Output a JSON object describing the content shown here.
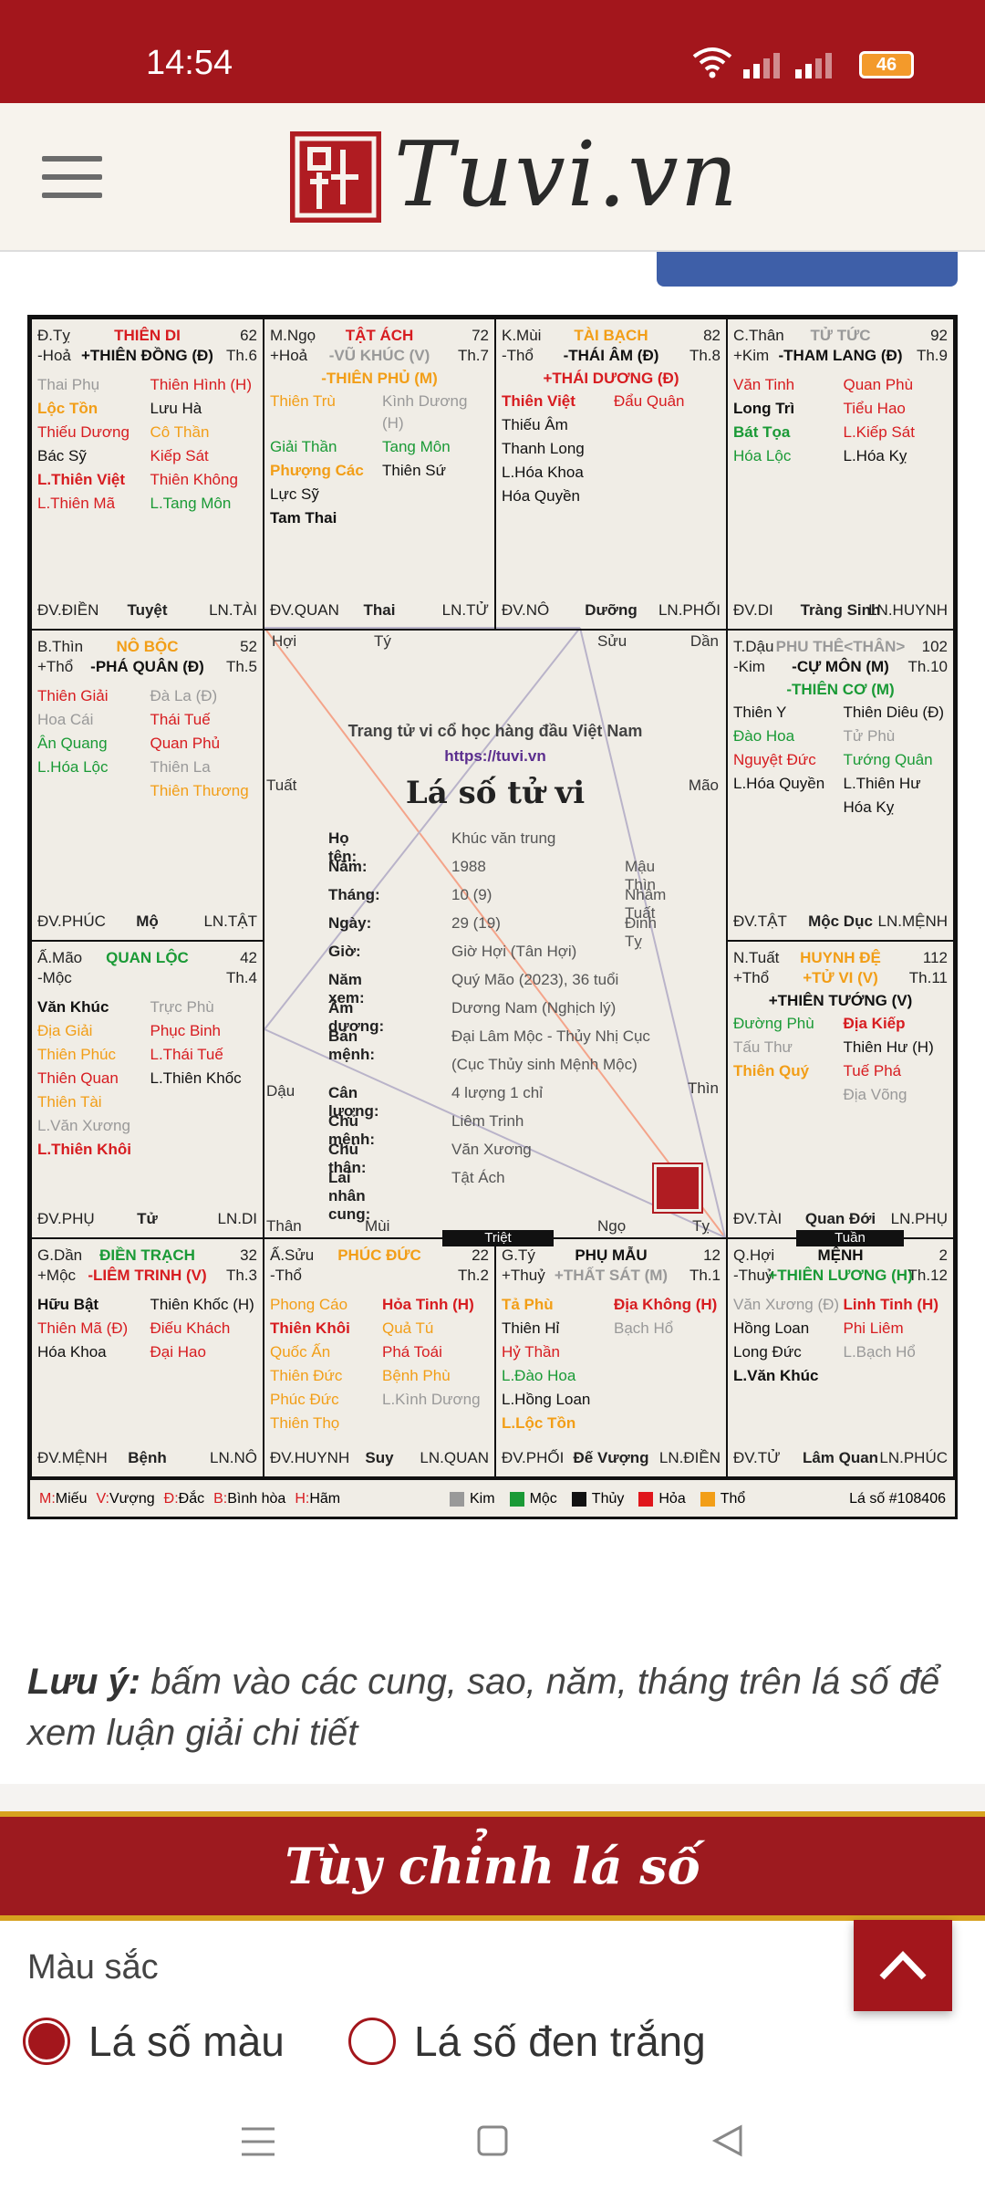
{
  "status": {
    "time": "14:54",
    "battery": "46"
  },
  "header": {
    "logo_text": "Tuvi.vn"
  },
  "center": {
    "t1": "Trang tử vi cổ học hàng đầu Việt Nam",
    "t2": "https://tuvi.vn",
    "t3": "Lá số tử vi",
    "rows": [
      [
        "Họ tên:",
        "Khúc văn trung",
        ""
      ],
      [
        "Năm:",
        "1988",
        "Mậu Thìn"
      ],
      [
        "Tháng:",
        "10 (9)",
        "Nhâm Tuất"
      ],
      [
        "Ngày:",
        "29 (19)",
        "Đinh Tỵ"
      ],
      [
        "Giờ:",
        "Giờ Hợi (Tân Hợi)",
        ""
      ],
      [
        "Năm xem:",
        "Quý Mão (2023), 36 tuổi",
        ""
      ],
      [
        "Âm dương:",
        "Dương Nam (Nghịch lý)",
        ""
      ],
      [
        "Bản mệnh:",
        "Đại Lâm Mộc - Thủy Nhị Cục",
        ""
      ],
      [
        "",
        "(Cục Thủy sinh Mệnh Mộc)",
        ""
      ],
      [
        "Cân lượng:",
        "4 lượng 1 chỉ",
        ""
      ],
      [
        "Chủ mệnh:",
        "Liêm Trinh",
        ""
      ],
      [
        "Chủ thân:",
        "Văn Xương",
        ""
      ],
      [
        "Lai nhân cung:",
        "Tật Ách",
        ""
      ]
    ],
    "corners": {
      "hoi": "Hợi",
      "ty": "Tý",
      "suu": "Sửu",
      "dan": "Dần",
      "tuat": "Tuất",
      "mao": "Mão",
      "dau": "Dậu",
      "thin": "Thìn",
      "than": "Thân",
      "mui": "Mùi",
      "ngo": "Ngọ",
      "ty2": "Tỵ"
    },
    "triet": "Triệt",
    "tuan": "Tuần"
  },
  "cells": [
    {
      "pos": "Đ.Tỵ",
      "name": "THIÊN DI",
      "nameColor": "#d71c20",
      "num": "62",
      "pos2": "-Hoả",
      "main": "+THIÊN ĐỒNG (Đ)",
      "mainColor": "#111",
      "main2": "",
      "main2Color": "",
      "th": "Th.6",
      "stars": [
        [
          "Thai Phụ",
          "c-gry"
        ],
        [
          "Thiên Hình (H)",
          "c-red"
        ],
        [
          "Lộc Tồn",
          "c-org b"
        ],
        [
          "Lưu Hà",
          "c-blk"
        ],
        [
          "Thiếu Dương",
          "c-red"
        ],
        [
          "Cô Thần",
          "c-org"
        ],
        [
          "Bác Sỹ",
          "c-blk"
        ],
        [
          "Kiếp Sát",
          "c-red"
        ],
        [
          "L.Thiên Việt",
          "c-red b"
        ],
        [
          "Thiên Không",
          "c-red"
        ],
        [
          "L.Thiên Mã",
          "c-red"
        ],
        [
          "L.Tang Môn",
          "c-grn"
        ]
      ],
      "foot": [
        "ĐV.ĐIỀN",
        "Tuyệt",
        "LN.TÀI"
      ]
    },
    {
      "pos": "M.Ngọ",
      "name": "TẬT ÁCH",
      "nameColor": "#d71c20",
      "num": "72",
      "pos2": "+Hoả",
      "main": "-VŨ KHÚC (V)",
      "mainColor": "#999",
      "main2": "-THIÊN PHỦ (M)",
      "main2Color": "#f29e17",
      "th": "Th.7",
      "stars": [
        [
          "Thiên Trù",
          "c-org"
        ],
        [
          "Kình Dương (H)",
          "c-gry"
        ],
        [
          "Giải Thần",
          "c-grn"
        ],
        [
          "Tang Môn",
          "c-grn"
        ],
        [
          "Phượng Các",
          "c-org b"
        ],
        [
          "Thiên Sứ",
          "c-blk"
        ],
        [
          "Lực Sỹ",
          "c-blk"
        ],
        [
          "",
          ""
        ],
        [
          "Tam Thai",
          "c-blk b"
        ],
        [
          "",
          ""
        ]
      ],
      "foot": [
        "ĐV.QUAN",
        "Thai",
        "LN.TỬ"
      ]
    },
    {
      "pos": "K.Mùi",
      "name": "TÀI BẠCH",
      "nameColor": "#f29e17",
      "num": "82",
      "pos2": "-Thổ",
      "main": "-THÁI ÂM (Đ)",
      "mainColor": "#111",
      "main2": "+THÁI DƯƠNG (Đ)",
      "main2Color": "#d71c20",
      "th": "Th.8",
      "stars": [
        [
          "Thiên Việt",
          "c-red b"
        ],
        [
          "Đẩu Quân",
          "c-red"
        ],
        [
          "Thiếu Âm",
          "c-blk"
        ],
        [
          "",
          ""
        ],
        [
          "Thanh Long",
          "c-blk"
        ],
        [
          "",
          ""
        ],
        [
          "L.Hóa Khoa",
          "c-blk"
        ],
        [
          "",
          ""
        ],
        [
          "Hóa Quyền",
          "c-blk"
        ],
        [
          "",
          ""
        ]
      ],
      "foot": [
        "ĐV.NÔ",
        "Dưỡng",
        "LN.PHỐI"
      ]
    },
    {
      "pos": "C.Thân",
      "name": "TỬ TỨC",
      "nameColor": "#999",
      "num": "92",
      "pos2": "+Kim",
      "main": "-THAM LANG (Đ)",
      "mainColor": "#111",
      "main2": "",
      "main2Color": "",
      "th": "Th.9",
      "stars": [
        [
          "Văn Tinh",
          "c-red"
        ],
        [
          "Quan Phù",
          "c-red"
        ],
        [
          "Long Trì",
          "c-blk b"
        ],
        [
          "Tiểu Hao",
          "c-red"
        ],
        [
          "Bát Tọa",
          "c-grn b"
        ],
        [
          "L.Kiếp Sát",
          "c-red"
        ],
        [
          "Hóa Lộc",
          "c-grn"
        ],
        [
          "L.Hóa Kỵ",
          "c-blk"
        ]
      ],
      "foot": [
        "ĐV.DI",
        "Tràng Sinh",
        "LN.HUYNH"
      ]
    },
    {
      "pos": "B.Thìn",
      "name": "NÔ BỘC",
      "nameColor": "#f29e17",
      "num": "52",
      "pos2": "+Thổ",
      "main": "-PHÁ QUÂN (Đ)",
      "mainColor": "#111",
      "main2": "",
      "main2Color": "",
      "th": "Th.5",
      "stars": [
        [
          "Thiên Giải",
          "c-red"
        ],
        [
          "Đà La (Đ)",
          "c-gry"
        ],
        [
          "Hoa Cái",
          "c-gry"
        ],
        [
          "Thái Tuế",
          "c-red"
        ],
        [
          "Ân Quang",
          "c-grn"
        ],
        [
          "Quan Phủ",
          "c-red"
        ],
        [
          "L.Hóa Lộc",
          "c-grn"
        ],
        [
          "Thiên La",
          "c-gry"
        ],
        [
          "",
          ""
        ],
        [
          "Thiên Thương",
          "c-org"
        ]
      ],
      "foot": [
        "ĐV.PHÚC",
        "Mộ",
        "LN.TẬT"
      ]
    },
    {
      "pos": "T.Dậu",
      "name": "PHU THÊ<THÂN>",
      "nameColor": "#999",
      "num": "102",
      "pos2": "-Kim",
      "main": "-CỰ MÔN (M)",
      "mainColor": "#111",
      "main2": "-THIÊN CƠ (M)",
      "main2Color": "#1a9a36",
      "th": "Th.10",
      "stars": [
        [
          "Thiên Y",
          "c-blk"
        ],
        [
          "Thiên Diêu (Đ)",
          "c-blk"
        ],
        [
          "Đào Hoa",
          "c-grn"
        ],
        [
          "Tử Phù",
          "c-gry"
        ],
        [
          "Nguyệt Đức",
          "c-red"
        ],
        [
          "Tướng Quân",
          "c-grn"
        ],
        [
          "L.Hóa Quyền",
          "c-blk"
        ],
        [
          "L.Thiên Hư",
          "c-blk"
        ],
        [
          "",
          ""
        ],
        [
          "Hóa Kỵ",
          "c-blk"
        ]
      ],
      "foot": [
        "ĐV.TẬT",
        "Mộc Dục",
        "LN.MỆNH"
      ]
    },
    {
      "pos": "Ấ.Mão",
      "name": "QUAN LỘC",
      "nameColor": "#1a9a36",
      "num": "42",
      "pos2": "-Mộc",
      "main": "",
      "mainColor": "",
      "main2": "",
      "main2Color": "",
      "th": "Th.4",
      "stars": [
        [
          "Văn Khúc",
          "c-blk b"
        ],
        [
          "Trực Phù",
          "c-gry"
        ],
        [
          "Địa Giải",
          "c-org"
        ],
        [
          "Phục Binh",
          "c-red"
        ],
        [
          "Thiên Phúc",
          "c-org"
        ],
        [
          "L.Thái Tuế",
          "c-red"
        ],
        [
          "Thiên Quan",
          "c-red"
        ],
        [
          "L.Thiên Khốc",
          "c-blk"
        ],
        [
          "Thiên Tài",
          "c-org"
        ],
        [
          "",
          ""
        ],
        [
          "L.Văn Xương",
          "c-gry"
        ],
        [
          "",
          ""
        ],
        [
          "L.Thiên Khôi",
          "c-red b"
        ],
        [
          "",
          ""
        ]
      ],
      "foot": [
        "ĐV.PHỤ",
        "Tử",
        "LN.DI"
      ]
    },
    {
      "pos": "N.Tuất",
      "name": "HUYNH ĐỆ",
      "nameColor": "#f29e17",
      "num": "112",
      "pos2": "+Thổ",
      "main": "+TỬ VI (V)",
      "mainColor": "#f29e17",
      "main2": "+THIÊN TƯỚNG (V)",
      "main2Color": "#111",
      "th": "Th.11",
      "stars": [
        [
          "Đường Phù",
          "c-grn"
        ],
        [
          "Địa Kiếp",
          "c-red b"
        ],
        [
          "Tấu Thư",
          "c-gry"
        ],
        [
          "Thiên Hư (H)",
          "c-blk"
        ],
        [
          "Thiên Quý",
          "c-org b"
        ],
        [
          "Tuế Phá",
          "c-red"
        ],
        [
          "",
          ""
        ],
        [
          "Địa Võng",
          "c-gry"
        ]
      ],
      "foot": [
        "ĐV.TÀI",
        "Quan Đới",
        "LN.PHỤ"
      ]
    },
    {
      "pos": "G.Dần",
      "name": "ĐIỀN TRẠCH",
      "nameColor": "#1a9a36",
      "num": "32",
      "pos2": "+Mộc",
      "main": "-LIÊM TRINH (V)",
      "mainColor": "#d71c20",
      "main2": "",
      "main2Color": "",
      "th": "Th.3",
      "stars": [
        [
          "Hữu Bật",
          "c-blk b"
        ],
        [
          "Thiên Khốc (H)",
          "c-blk"
        ],
        [
          "Thiên Mã (Đ)",
          "c-red"
        ],
        [
          "Điếu Khách",
          "c-red"
        ],
        [
          "Hóa Khoa",
          "c-blk"
        ],
        [
          "Đại Hao",
          "c-red"
        ]
      ],
      "foot": [
        "ĐV.MỆNH",
        "Bệnh",
        "LN.NÔ"
      ]
    },
    {
      "pos": "Ấ.Sửu",
      "name": "PHÚC ĐỨC",
      "nameColor": "#f29e17",
      "num": "22",
      "pos2": "-Thổ",
      "main": "",
      "mainColor": "",
      "main2": "",
      "main2Color": "",
      "th": "Th.2",
      "stars": [
        [
          "Phong Cáo",
          "c-org"
        ],
        [
          "Hỏa Tinh (H)",
          "c-red b"
        ],
        [
          "Thiên Khôi",
          "c-red b"
        ],
        [
          "Quả Tú",
          "c-org"
        ],
        [
          "Quốc Ấn",
          "c-org"
        ],
        [
          "Phá Toái",
          "c-red"
        ],
        [
          "Thiên Đức",
          "c-org"
        ],
        [
          "Bệnh Phù",
          "c-org"
        ],
        [
          "Phúc Đức",
          "c-org"
        ],
        [
          "L.Kình Dương",
          "c-gry"
        ],
        [
          "Thiên Thọ",
          "c-org"
        ],
        [
          "",
          ""
        ]
      ],
      "foot": [
        "ĐV.HUYNH",
        "Suy",
        "LN.QUAN"
      ]
    },
    {
      "pos": "G.Tý",
      "name": "PHỤ MẪU",
      "nameColor": "#111",
      "num": "12",
      "pos2": "+Thuỷ",
      "main": "+THẤT SÁT (M)",
      "mainColor": "#999",
      "main2": "",
      "main2Color": "",
      "th": "Th.1",
      "stars": [
        [
          "Tả Phù",
          "c-org b"
        ],
        [
          "Địa Không (H)",
          "c-red b"
        ],
        [
          "Thiên Hỉ",
          "c-blk"
        ],
        [
          "Bạch Hổ",
          "c-gry"
        ],
        [
          "Hỷ Thần",
          "c-red"
        ],
        [
          "",
          ""
        ],
        [
          "L.Đào Hoa",
          "c-grn"
        ],
        [
          "",
          ""
        ],
        [
          "L.Hồng Loan",
          "c-blk"
        ],
        [
          "",
          ""
        ],
        [
          "L.Lộc Tồn",
          "c-org b"
        ],
        [
          "",
          ""
        ]
      ],
      "foot": [
        "ĐV.PHỐI",
        "Đế Vượng",
        "LN.ĐIỀN"
      ]
    },
    {
      "pos": "Q.Hợi",
      "name": "MỆNH",
      "nameColor": "#111",
      "num": "2",
      "pos2": "-Thuỷ",
      "main": "+THIÊN LƯƠNG (H)",
      "mainColor": "#1a9a36",
      "main2": "",
      "main2Color": "",
      "th": "Th.12",
      "stars": [
        [
          "Văn Xương (Đ)",
          "c-gry"
        ],
        [
          "Linh Tinh (H)",
          "c-red b"
        ],
        [
          "Hồng Loan",
          "c-blk"
        ],
        [
          "Phi Liêm",
          "c-red"
        ],
        [
          "Long Đức",
          "c-blk"
        ],
        [
          "L.Bạch Hổ",
          "c-gry"
        ],
        [
          "L.Văn Khúc",
          "c-blk b"
        ],
        [
          "",
          ""
        ]
      ],
      "foot": [
        "ĐV.TỬ",
        "Lâm Quan",
        "LN.PHÚC"
      ]
    }
  ],
  "legend": {
    "left": [
      [
        "M:",
        "Miếu"
      ],
      [
        "V:",
        "Vượng"
      ],
      [
        "Đ:",
        "Đắc"
      ],
      [
        "B:",
        "Bình hòa"
      ],
      [
        "H:",
        "Hãm"
      ]
    ],
    "elements": [
      [
        "Kim",
        "#999999"
      ],
      [
        "Mộc",
        "#1a9a36"
      ],
      [
        "Thủy",
        "#111111"
      ],
      [
        "Hỏa",
        "#e0161c"
      ],
      [
        "Thổ",
        "#f29e17"
      ]
    ],
    "laso": "Lá số #108406"
  },
  "note": {
    "bold": "Lưu ý:",
    "text": " bấm vào các cung, sao, năm, tháng trên lá số để xem luận giải chi tiết"
  },
  "banner": "Tùy chỉnh lá số",
  "mausac": "Màu sắc",
  "radio1": "Lá số màu",
  "radio2": "Lá số đen trắng"
}
